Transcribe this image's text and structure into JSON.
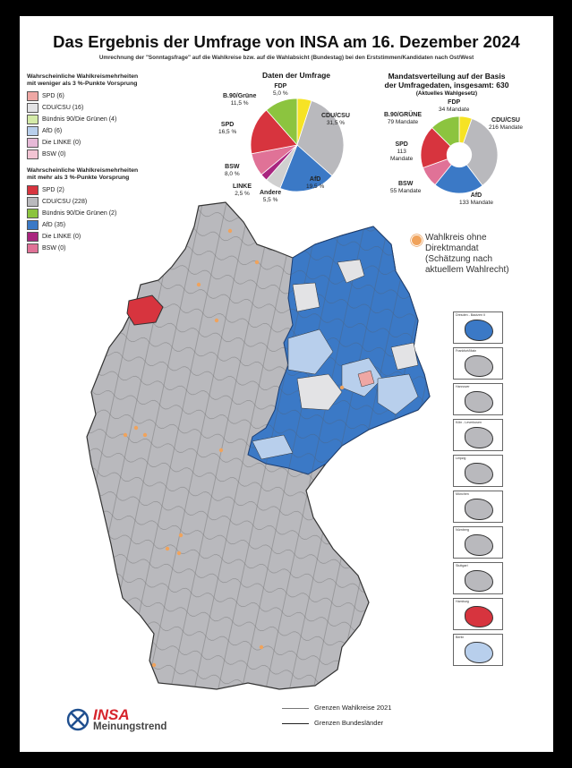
{
  "title": "Das Ergebnis der Umfrage von INSA am 16. Dezember 2024",
  "subtitle": "Umrechnung der \"Sonntagsfrage\" auf die Wahlkreise bzw. auf die Wahlabsicht (Bundestag) bei den Erststimmen/Kandidaten nach Ost/West",
  "colors": {
    "spd": "#d7343e",
    "spd_light": "#eea7a4",
    "cdu": "#b9b9bd",
    "cdu_light": "#e3e3e5",
    "gruene": "#8cc43f",
    "gruene_light": "#d4eaa8",
    "afd": "#3b79c6",
    "afd_light": "#b8cfec",
    "linke": "#a9257f",
    "linke_light": "#e6b9d7",
    "bsw": "#e07297",
    "bsw_light": "#f2c4d3",
    "fdp": "#f6e325",
    "andere": "#d0d0d0"
  },
  "legend_weak": {
    "heading_1": "Wahrscheinliche Wahlkreismehrheiten",
    "heading_2": "mit weniger als 3 %-Punkte Vorsprung",
    "items": [
      {
        "label": "SPD (6)",
        "color": "#eea7a4"
      },
      {
        "label": "CDU/CSU (16)",
        "color": "#e3e3e5"
      },
      {
        "label": "Bündnis 90/Die Grünen (4)",
        "color": "#d4eaa8"
      },
      {
        "label": "AfD (6)",
        "color": "#b8cfec"
      },
      {
        "label": "Die LINKE (0)",
        "color": "#e6b9d7"
      },
      {
        "label": "BSW (0)",
        "color": "#f2c4d3"
      }
    ]
  },
  "legend_strong": {
    "heading_1": "Wahrscheinliche Wahlkreismehrheiten",
    "heading_2": "mit mehr als 3 %-Punkte Vorsprung",
    "items": [
      {
        "label": "SPD (2)",
        "color": "#d7343e"
      },
      {
        "label": "CDU/CSU (228)",
        "color": "#b9b9bd"
      },
      {
        "label": "Bündnis 90/Die Grünen (2)",
        "color": "#8cc43f"
      },
      {
        "label": "AfD (35)",
        "color": "#3b79c6"
      },
      {
        "label": "Die LINKE (0)",
        "color": "#a9257f"
      },
      {
        "label": "BSW (0)",
        "color": "#e07297"
      }
    ]
  },
  "survey_chart": {
    "title": "Daten der Umfrage",
    "labels": {
      "fdp": "FDP",
      "fdp_v": "5,0 %",
      "cdu": "CDU/CSU",
      "cdu_v": "31,5 %",
      "afd": "AfD",
      "afd_v": "19,5 %",
      "andere": "Andere",
      "andere_v": "5,5 %",
      "linke": "LINKE",
      "linke_v": "2,5 %",
      "bsw": "BSW",
      "bsw_v": "8,0 %",
      "spd": "SPD",
      "spd_v": "16,5 %",
      "gruene": "B.90/Grüne",
      "gruene_v": "11,5 %"
    }
  },
  "seat_chart": {
    "title_1": "Mandatsverteilung auf der Basis",
    "title_2": "der Umfragedaten, insgesamt: 630",
    "sub": "(Aktuelles Wahlgesetz)",
    "labels": {
      "fdp": "FDP",
      "fdp_v": "34 Mandate",
      "cdu": "CDU/CSU",
      "cdu_v": "216 Mandate",
      "afd": "AfD",
      "afd_v": "133 Mandate",
      "bsw": "BSW",
      "bsw_v": "55 Mandate",
      "spd": "SPD",
      "spd_v1": "113",
      "spd_v2": "Mandate",
      "gruene": "B.90/GRÜNE",
      "gruene_v": "79 Mandate"
    }
  },
  "chart_data": [
    {
      "type": "pie",
      "title": "Daten der Umfrage",
      "categories": [
        "FDP",
        "CDU/CSU",
        "AfD",
        "Andere",
        "LINKE",
        "BSW",
        "SPD",
        "B.90/Grüne"
      ],
      "values": [
        5.0,
        31.5,
        19.5,
        5.5,
        2.5,
        8.0,
        16.5,
        11.5
      ],
      "colors": [
        "#f6e325",
        "#b9b9bd",
        "#3b79c6",
        "#d0d0d0",
        "#a9257f",
        "#e07297",
        "#d7343e",
        "#8cc43f"
      ]
    },
    {
      "type": "pie",
      "title": "Mandatsverteilung auf der Basis der Umfragedaten, insgesamt: 630",
      "categories": [
        "FDP",
        "CDU/CSU",
        "AfD",
        "BSW",
        "SPD",
        "B.90/GRÜNE"
      ],
      "values": [
        34,
        216,
        133,
        55,
        113,
        79
      ],
      "colors": [
        "#f6e325",
        "#b9b9bd",
        "#3b79c6",
        "#e07297",
        "#d7343e",
        "#8cc43f"
      ]
    }
  ],
  "note": {
    "line1": "Wahlkreis ohne",
    "line2": "Direktmandat",
    "line3": "(Schätzung nach",
    "line4": "aktuellem Wahlrecht)"
  },
  "insets": [
    "Dresden - Bautzen II",
    "Frankfurt/Main",
    "Hannover",
    "Köln - Leverkusen",
    "Leipzig",
    "München",
    "Nürnberg",
    "Stuttgart",
    "Hamburg",
    "Berlin"
  ],
  "bottom_legend": {
    "district_borders": "Grenzen Wahlkreise 2021",
    "state_borders": "Grenzen Bundesländer"
  },
  "logo": {
    "brand": "INSA",
    "sub": "Meinungstrend"
  }
}
